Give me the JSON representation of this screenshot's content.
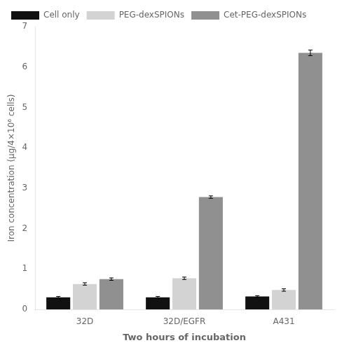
{
  "chart_data": {
    "type": "bar",
    "xlabel": "Two hours of incubation",
    "ylabel": "Iron concentration (μg/4×10⁶ cells)",
    "categories": [
      "32D",
      "32D/EGFR",
      "A431"
    ],
    "series": [
      {
        "name": "Cell only",
        "color": "#111111",
        "values": [
          0.3,
          0.3,
          0.32
        ],
        "errors": [
          0.02,
          0.02,
          0.02
        ]
      },
      {
        "name": "PEG-dexSPIONs",
        "color": "#d3d3d3",
        "values": [
          0.63,
          0.77,
          0.48
        ],
        "errors": [
          0.03,
          0.03,
          0.03
        ]
      },
      {
        "name": "Cet-PEG-dexSPIONs",
        "color": "#909090",
        "values": [
          0.75,
          2.78,
          6.35
        ],
        "errors": [
          0.03,
          0.03,
          0.07
        ]
      }
    ],
    "ylim": [
      0,
      7
    ],
    "yticks": [
      0,
      1,
      2,
      3,
      4,
      5,
      6,
      7
    ],
    "legend": "upper left",
    "grid": false
  }
}
